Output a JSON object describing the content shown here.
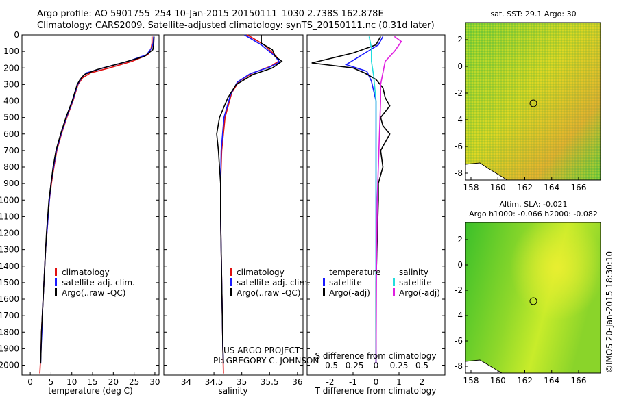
{
  "header": {
    "line1": "Argo profile: AO 5901755_254 10-Jan-2015 20150111_1030 2.738S 162.878E",
    "line2": "Climatology: CARS2009. Satellite-adjusted climatology: synTS_20150111.nc (0.31d later)"
  },
  "credit": {
    "line1": "US ARGO PROJECT",
    "line2": "PI: GREGORY C. JOHNSON",
    "vertical": "©IMOS 20-Jan-2015 18:30:10"
  },
  "colors": {
    "climatology": "#e01010",
    "satellite": "#1a1aff",
    "argo": "#000000",
    "sat_salinity": "#22dddd",
    "argo_salinity": "#e020e0"
  },
  "chart_data": [
    {
      "type": "line",
      "xlabel": "temperature (deg C)",
      "ylabel": "",
      "xlim": [
        -2,
        31
      ],
      "ylim": [
        2060,
        0
      ],
      "x_ticks": [
        0,
        5,
        10,
        15,
        20,
        25,
        30
      ],
      "y_ticks": [
        0,
        100,
        200,
        300,
        400,
        500,
        600,
        700,
        800,
        900,
        1000,
        1100,
        1200,
        1300,
        1400,
        1500,
        1600,
        1700,
        1800,
        1900,
        2000
      ],
      "legend": [
        "climatology",
        "satellite-adj. clim.",
        "Argo(..raw -QC)"
      ],
      "series": [
        {
          "name": "climatology",
          "color": "#e01010",
          "points": [
            [
              29.3,
              10
            ],
            [
              29.3,
              50
            ],
            [
              29.1,
              80
            ],
            [
              28.3,
              120
            ],
            [
              24.5,
              160
            ],
            [
              19.0,
              200
            ],
            [
              14.5,
              230
            ],
            [
              12.6,
              260
            ],
            [
              11.5,
              300
            ],
            [
              10.3,
              400
            ],
            [
              8.8,
              500
            ],
            [
              7.5,
              600
            ],
            [
              6.4,
              700
            ],
            [
              5.7,
              800
            ],
            [
              5.1,
              900
            ],
            [
              4.6,
              1000
            ],
            [
              4.3,
              1100
            ],
            [
              4.0,
              1200
            ],
            [
              3.7,
              1300
            ],
            [
              3.5,
              1400
            ],
            [
              3.3,
              1500
            ],
            [
              3.1,
              1600
            ],
            [
              2.9,
              1700
            ],
            [
              2.7,
              1800
            ],
            [
              2.6,
              1900
            ],
            [
              2.4,
              2000
            ],
            [
              2.3,
              2050
            ]
          ]
        },
        {
          "name": "satellite-adj. clim.",
          "color": "#1a1aff",
          "points": [
            [
              29.7,
              10
            ],
            [
              29.6,
              50
            ],
            [
              29.2,
              80
            ],
            [
              28.0,
              120
            ],
            [
              23.5,
              160
            ],
            [
              17.5,
              200
            ],
            [
              13.5,
              230
            ],
            [
              12.3,
              260
            ],
            [
              11.4,
              300
            ],
            [
              10.2,
              400
            ],
            [
              8.7,
              500
            ],
            [
              7.4,
              600
            ],
            [
              6.3,
              700
            ],
            [
              5.6,
              800
            ],
            [
              5.0,
              900
            ],
            [
              4.6,
              1000
            ],
            [
              4.3,
              1100
            ],
            [
              4.0,
              1200
            ],
            [
              3.7,
              1300
            ],
            [
              3.5,
              1400
            ],
            [
              3.3,
              1500
            ],
            [
              3.1,
              1600
            ],
            [
              2.9,
              1700
            ],
            [
              2.8,
              1800
            ],
            [
              2.6,
              1900
            ],
            [
              2.5,
              1990
            ]
          ]
        },
        {
          "name": "Argo(..raw -QC)",
          "color": "#000000",
          "points": [
            [
              29.8,
              10
            ],
            [
              29.7,
              60
            ],
            [
              29.5,
              90
            ],
            [
              27.5,
              130
            ],
            [
              22.0,
              170
            ],
            [
              16.0,
              210
            ],
            [
              13.0,
              240
            ],
            [
              12.0,
              270
            ],
            [
              11.3,
              300
            ],
            [
              10.1,
              400
            ],
            [
              8.6,
              500
            ],
            [
              7.3,
              600
            ],
            [
              6.2,
              700
            ],
            [
              5.5,
              800
            ],
            [
              5.0,
              900
            ],
            [
              4.5,
              1000
            ],
            [
              4.2,
              1100
            ],
            [
              3.9,
              1200
            ],
            [
              3.7,
              1300
            ],
            [
              3.5,
              1400
            ],
            [
              3.3,
              1500
            ],
            [
              3.1,
              1600
            ],
            [
              2.9,
              1700
            ],
            [
              2.7,
              1800
            ],
            [
              2.6,
              1900
            ],
            [
              2.5,
              1990
            ]
          ]
        }
      ]
    },
    {
      "type": "line",
      "xlabel": "salinity",
      "ylabel": "",
      "xlim": [
        33.6,
        36.1
      ],
      "ylim": [
        2060,
        0
      ],
      "x_ticks": [
        34,
        34.5,
        35,
        35.5,
        36
      ],
      "legend": [
        "climatology",
        "satellite-adj. clim.",
        "Argo(..raw -QC)"
      ],
      "series": [
        {
          "name": "climatology",
          "color": "#e01010",
          "points": [
            [
              35.1,
              0
            ],
            [
              35.4,
              60
            ],
            [
              35.62,
              130
            ],
            [
              35.66,
              160
            ],
            [
              35.52,
              190
            ],
            [
              35.2,
              230
            ],
            [
              34.95,
              280
            ],
            [
              34.82,
              350
            ],
            [
              34.7,
              500
            ],
            [
              34.64,
              700
            ],
            [
              34.62,
              900
            ],
            [
              34.62,
              1100
            ],
            [
              34.63,
              1300
            ],
            [
              34.64,
              1500
            ],
            [
              34.65,
              1700
            ],
            [
              34.66,
              1900
            ],
            [
              34.67,
              2050
            ]
          ]
        },
        {
          "name": "satellite-adj. clim.",
          "color": "#1a1aff",
          "points": [
            [
              35.05,
              0
            ],
            [
              35.35,
              60
            ],
            [
              35.6,
              130
            ],
            [
              35.68,
              165
            ],
            [
              35.5,
              195
            ],
            [
              35.15,
              235
            ],
            [
              34.92,
              285
            ],
            [
              34.8,
              360
            ],
            [
              34.68,
              500
            ],
            [
              34.63,
              700
            ],
            [
              34.62,
              900
            ],
            [
              34.62,
              1100
            ],
            [
              34.63,
              1300
            ],
            [
              34.64,
              1500
            ],
            [
              34.65,
              1700
            ],
            [
              34.66,
              1900
            ],
            [
              34.67,
              1990
            ]
          ]
        },
        {
          "name": "Argo(..raw -QC)",
          "color": "#000000",
          "points": [
            [
              35.35,
              0
            ],
            [
              35.35,
              50
            ],
            [
              35.55,
              90
            ],
            [
              35.6,
              130
            ],
            [
              35.72,
              160
            ],
            [
              35.55,
              200
            ],
            [
              35.2,
              240
            ],
            [
              34.9,
              300
            ],
            [
              34.75,
              380
            ],
            [
              34.6,
              500
            ],
            [
              34.55,
              600
            ],
            [
              34.58,
              700
            ],
            [
              34.62,
              900
            ],
            [
              34.62,
              1100
            ],
            [
              34.63,
              1300
            ],
            [
              34.64,
              1500
            ],
            [
              34.65,
              1700
            ],
            [
              34.66,
              1900
            ],
            [
              34.67,
              1990
            ]
          ]
        }
      ]
    },
    {
      "type": "line",
      "title": "S difference from climatology",
      "xlabel": "T difference from climatology",
      "xlim": [
        -3,
        3
      ],
      "ylim": [
        2060,
        0
      ],
      "x_ticks": [
        -2,
        -1,
        0,
        1,
        2
      ],
      "top_ticks": [
        "-0.5",
        "-0.25",
        "0",
        "0.25",
        "0.5"
      ],
      "legend_left_title": "temperature",
      "legend_right_title": "salinity",
      "legend": [
        "satellite",
        "Argo(-adj)",
        "satellite",
        "Argo(-adj)"
      ],
      "series": [
        {
          "name": "satellite",
          "color": "#1a1aff",
          "points": [
            [
              0.3,
              10
            ],
            [
              0.1,
              60
            ],
            [
              -0.6,
              120
            ],
            [
              -1.3,
              180
            ],
            [
              -0.4,
              220
            ],
            [
              -0.2,
              280
            ],
            [
              0.0,
              400
            ],
            [
              0.0,
              700
            ],
            [
              0.0,
              1000
            ],
            [
              0.0,
              1500
            ],
            [
              0.0,
              1990
            ]
          ]
        },
        {
          "name": "Argo(-adj)",
          "color": "#000000",
          "points": [
            [
              0.2,
              10
            ],
            [
              0.0,
              60
            ],
            [
              -1.0,
              110
            ],
            [
              -2.8,
              170
            ],
            [
              -1.0,
              200
            ],
            [
              -0.5,
              230
            ],
            [
              0.0,
              270
            ],
            [
              0.3,
              320
            ],
            [
              0.4,
              380
            ],
            [
              0.6,
              430
            ],
            [
              0.2,
              500
            ],
            [
              0.3,
              550
            ],
            [
              0.6,
              600
            ],
            [
              0.2,
              700
            ],
            [
              0.3,
              800
            ],
            [
              0.1,
              900
            ],
            [
              0.1,
              1000
            ],
            [
              0.0,
              1500
            ],
            [
              0.0,
              1990
            ]
          ]
        },
        {
          "name": "satellite",
          "color": "#22dddd",
          "points": [
            [
              -0.3,
              10
            ],
            [
              -0.2,
              80
            ],
            [
              -0.2,
              160
            ],
            [
              -0.1,
              250
            ],
            [
              0.0,
              400
            ],
            [
              0.0,
              800
            ],
            [
              0.0,
              1200
            ],
            [
              0.0,
              1990
            ]
          ]
        },
        {
          "name": "Argo(-adj)",
          "color": "#e020e0",
          "points": [
            [
              0.8,
              10
            ],
            [
              1.1,
              40
            ],
            [
              0.8,
              100
            ],
            [
              0.4,
              160
            ],
            [
              0.3,
              230
            ],
            [
              0.2,
              300
            ],
            [
              0.2,
              400
            ],
            [
              0.15,
              600
            ],
            [
              0.1,
              800
            ],
            [
              0.05,
              1000
            ],
            [
              0.02,
              1400
            ],
            [
              0.0,
              1990
            ]
          ]
        }
      ]
    }
  ],
  "maps": [
    {
      "title": "sat. SST: 29.1 Argo: 30",
      "x_ticks": [
        "158",
        "160",
        "162",
        "164",
        "166"
      ],
      "y_ticks": [
        "2",
        "0",
        "-2",
        "-4",
        "-6",
        "-8"
      ],
      "marker": {
        "lon": 162.878,
        "lat": -2.738
      }
    },
    {
      "title_line1": "Altim. SLA: -0.021",
      "title_line2": "Argo h1000: -0.066 h2000: -0.082",
      "x_ticks": [
        "158",
        "160",
        "162",
        "164",
        "166"
      ],
      "y_ticks": [
        "2",
        "0",
        "-2",
        "-4",
        "-6",
        "-8"
      ],
      "marker": {
        "lon": 162.878,
        "lat": -2.738
      }
    }
  ]
}
